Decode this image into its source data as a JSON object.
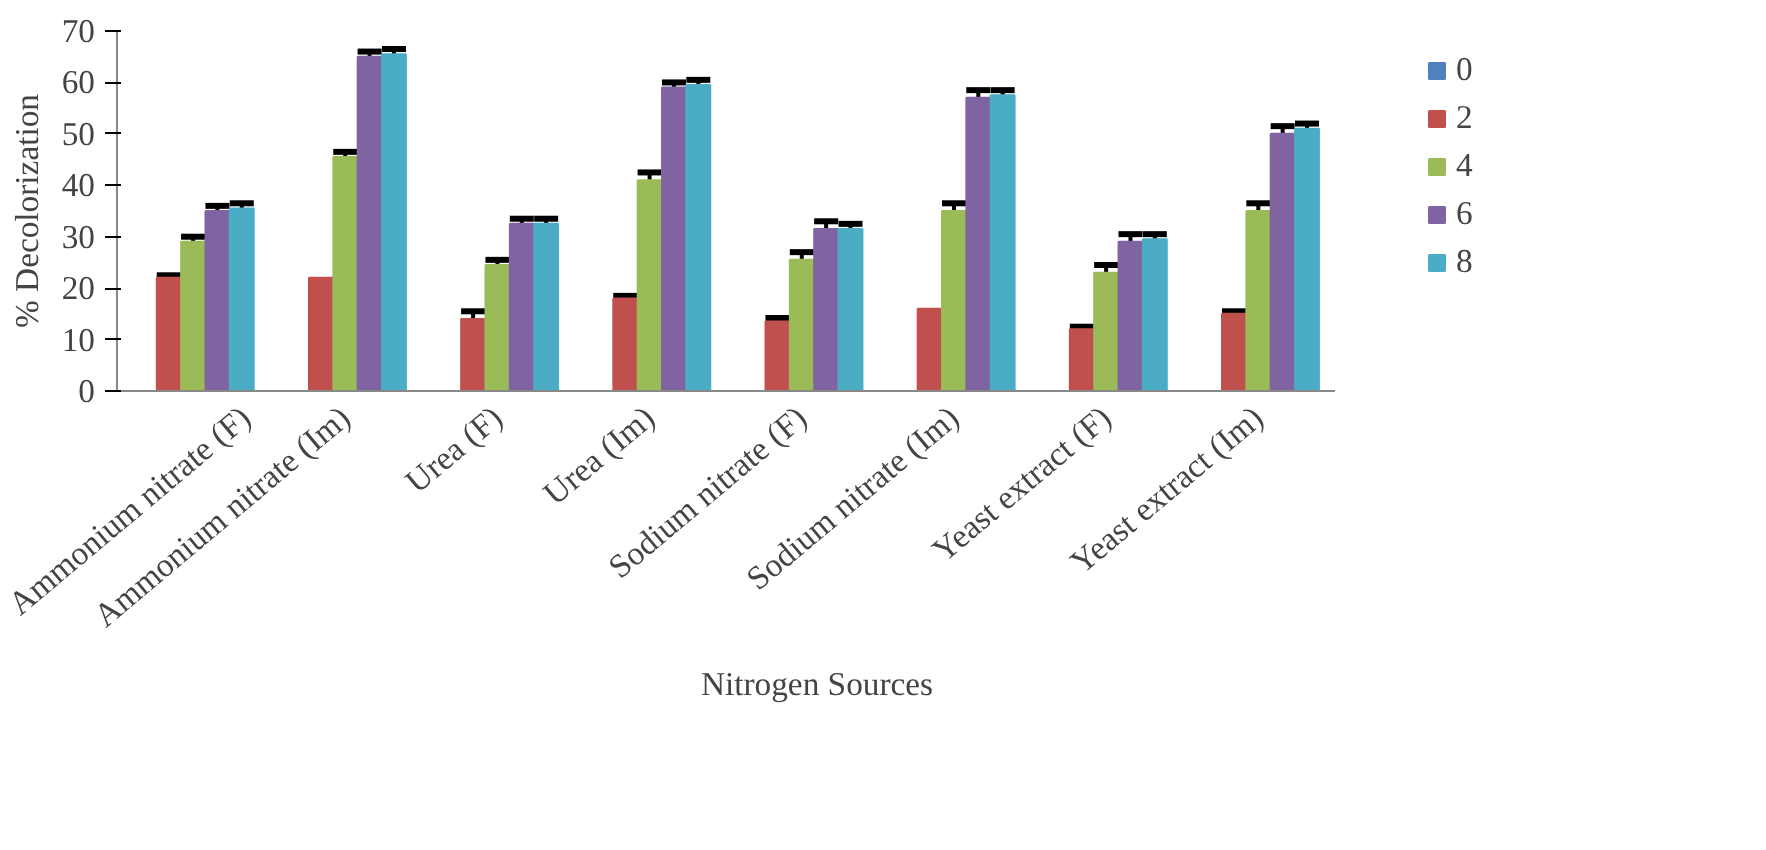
{
  "chart_data": {
    "type": "bar",
    "xlabel": "Nitrogen Sources",
    "ylabel": "% Decolorization",
    "categories": [
      "Ammonium nitrate (F)",
      "Ammonium nitrate (Im)",
      "Urea (F)",
      "Urea (Im)",
      "Sodium nitrate (F)",
      "Sodium nitrate (Im)",
      "Yeast extract (F)",
      "Yeast extract (Im)"
    ],
    "series": [
      {
        "name": "0",
        "color": "#4f81bd",
        "values": [
          0,
          0,
          0,
          0,
          0,
          0,
          0,
          0
        ]
      },
      {
        "name": "2",
        "color": "#c0504d",
        "values": [
          22,
          22,
          14,
          18,
          13.5,
          16,
          12,
          15
        ],
        "errors": [
          0.5,
          null,
          1.5,
          0.5,
          0.7,
          null,
          0.5,
          0.5
        ]
      },
      {
        "name": "4",
        "color": "#9bbb59",
        "values": [
          29,
          45.5,
          24.5,
          41,
          25.5,
          35,
          23,
          35
        ],
        "errors": [
          1,
          1,
          1,
          1.5,
          1.5,
          1.5,
          1.5,
          1.5
        ]
      },
      {
        "name": "6",
        "color": "#8064a2",
        "values": [
          35,
          65,
          32.5,
          59,
          31.5,
          57,
          29,
          50
        ],
        "errors": [
          1,
          1,
          1,
          1,
          1.5,
          1.5,
          1.5,
          1.5
        ]
      },
      {
        "name": "8",
        "color": "#4bacc6",
        "values": [
          35.5,
          65.5,
          32.5,
          59.5,
          31.5,
          57.5,
          29.5,
          51
        ],
        "errors": [
          1,
          1,
          1,
          1,
          1,
          1,
          1,
          1
        ]
      }
    ],
    "ylim": [
      0,
      70
    ],
    "yticks": [
      0,
      10,
      20,
      30,
      40,
      50,
      60,
      70
    ],
    "grid": false,
    "legend": "right"
  }
}
